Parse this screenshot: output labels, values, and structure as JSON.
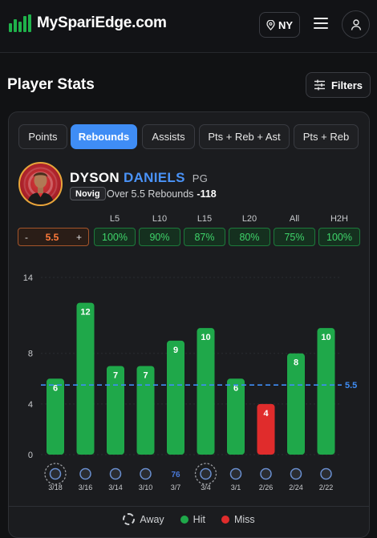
{
  "header": {
    "logo_text": "MySpariEdge.com",
    "state": "NY",
    "icons": {
      "location": "location-pin-icon",
      "menu": "hamburger-icon",
      "user": "user-icon"
    }
  },
  "page": {
    "title": "Player Stats",
    "filters_label": "Filters"
  },
  "tabs": [
    {
      "label": "Points",
      "active": false
    },
    {
      "label": "Rebounds",
      "active": true
    },
    {
      "label": "Assists",
      "active": false
    },
    {
      "label": "Pts + Reb + Ast",
      "active": false
    },
    {
      "label": "Pts + Reb",
      "active": false
    }
  ],
  "player": {
    "first_name": "DYSON",
    "last_name": "DANIELS",
    "position": "PG",
    "book": "Novig",
    "line_text": "Over 5.5 Rebounds",
    "odds": "-118"
  },
  "line": {
    "value": "5.5",
    "minus": "-",
    "plus": "+"
  },
  "splits": [
    {
      "label": "L5",
      "value": "100%"
    },
    {
      "label": "L10",
      "value": "90%"
    },
    {
      "label": "L15",
      "value": "87%"
    },
    {
      "label": "L20",
      "value": "80%"
    },
    {
      "label": "All",
      "value": "75%"
    },
    {
      "label": "H2H",
      "value": "100%"
    }
  ],
  "colors": {
    "hit": "#1fa84a",
    "miss": "#e02c2c",
    "line": "#3f8df5",
    "accent": "#3f8df5"
  },
  "chart_data": {
    "type": "bar",
    "categories": [
      "3/18",
      "3/16",
      "3/14",
      "3/10",
      "3/7",
      "3/4",
      "3/1",
      "2/26",
      "2/24",
      "2/22"
    ],
    "values": [
      6,
      12,
      7,
      7,
      9,
      10,
      6,
      4,
      8,
      10
    ],
    "results": [
      "hit",
      "hit",
      "hit",
      "hit",
      "hit",
      "hit",
      "hit",
      "miss",
      "hit",
      "hit"
    ],
    "away": [
      true,
      false,
      false,
      false,
      false,
      true,
      false,
      false,
      false,
      false
    ],
    "opponent_icons": [
      "mavericks-icon",
      "magic-icon",
      "bucks-icon",
      "mavericks-icon",
      "76ers-icon",
      "bucks-icon",
      "blazers-icon",
      "wizards-icon",
      "wizards-icon",
      "nets-icon"
    ],
    "opponent_glyphs": [
      "",
      "",
      "",
      "",
      "76",
      "",
      "",
      "",
      "",
      ""
    ],
    "y_ticks": [
      0,
      4,
      8,
      14
    ],
    "ylim": [
      0,
      14
    ],
    "threshold": 5.5,
    "threshold_label": "5.5"
  },
  "legend": [
    {
      "label": "Away",
      "kind": "away"
    },
    {
      "label": "Hit",
      "kind": "hit"
    },
    {
      "label": "Miss",
      "kind": "miss"
    }
  ]
}
